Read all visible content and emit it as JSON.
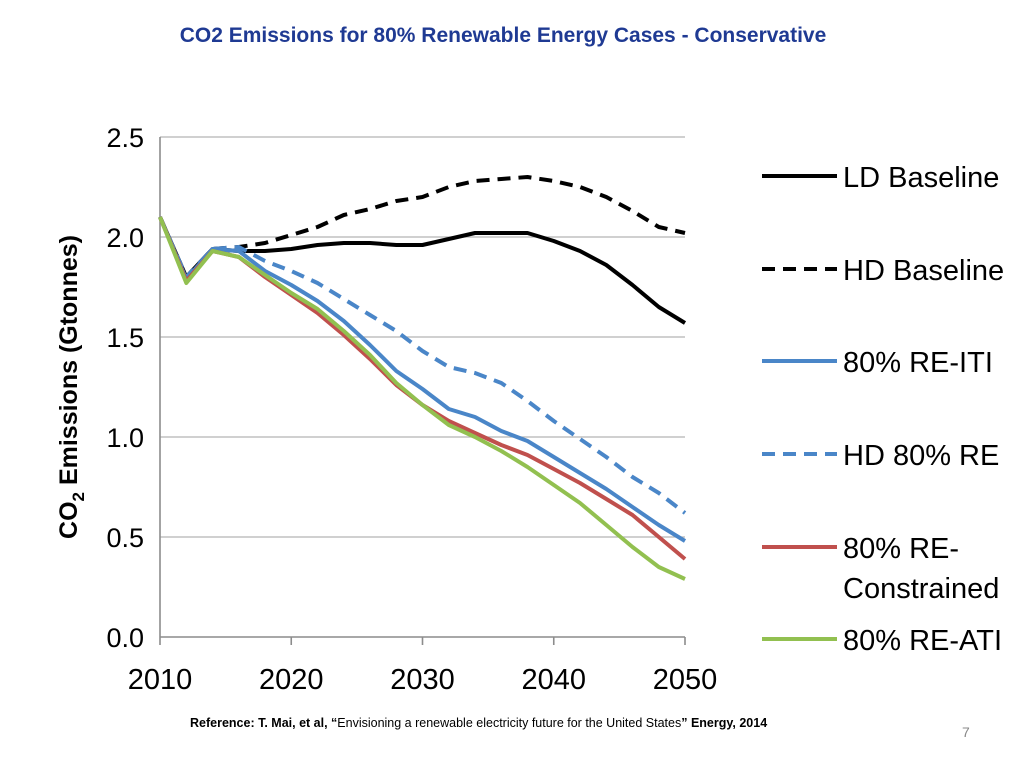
{
  "slide": {
    "title": "CO2 Emissions for 80% Renewable Energy Cases - Conservative",
    "reference": {
      "prefix": "Reference:  T. Mai, et al, “",
      "text": "Envisioning a renewable electricity future for the United States",
      "suffix": "” Energy, 2014"
    },
    "page_number": "7"
  },
  "chart_data": {
    "type": "line",
    "title": "",
    "xlabel": "",
    "ylabel_main": "CO",
    "ylabel_sub": "2",
    "ylabel_rest": " Emissions (Gtonnes)",
    "xlim": [
      2010,
      2050
    ],
    "ylim": [
      0,
      2.5
    ],
    "x_ticks": [
      "2010",
      "2020",
      "2030",
      "2040",
      "2050"
    ],
    "y_ticks": [
      "0.0",
      "0.5",
      "1.0",
      "1.5",
      "2.0",
      "2.5"
    ],
    "grid": "horizontal",
    "legend_position": "right",
    "series": [
      {
        "name": "LD Baseline",
        "color": "#000000",
        "dash": "solid",
        "x": [
          2010,
          2012,
          2014,
          2016,
          2018,
          2020,
          2022,
          2024,
          2026,
          2028,
          2030,
          2032,
          2034,
          2036,
          2038,
          2040,
          2042,
          2044,
          2046,
          2048,
          2050
        ],
        "values": [
          2.1,
          1.8,
          1.94,
          1.93,
          1.93,
          1.94,
          1.96,
          1.97,
          1.97,
          1.96,
          1.96,
          1.99,
          2.02,
          2.02,
          2.02,
          1.98,
          1.93,
          1.86,
          1.76,
          1.65,
          1.57
        ]
      },
      {
        "name": "HD Baseline",
        "color": "#000000",
        "dash": "dash",
        "x": [
          2010,
          2012,
          2014,
          2016,
          2018,
          2020,
          2022,
          2024,
          2026,
          2028,
          2030,
          2032,
          2034,
          2036,
          2038,
          2040,
          2042,
          2044,
          2046,
          2048,
          2050
        ],
        "values": [
          2.1,
          1.8,
          1.94,
          1.95,
          1.97,
          2.01,
          2.05,
          2.11,
          2.14,
          2.18,
          2.2,
          2.25,
          2.28,
          2.29,
          2.3,
          2.28,
          2.25,
          2.2,
          2.13,
          2.05,
          2.02
        ]
      },
      {
        "name": "80% RE-ITI",
        "color": "#4a86c8",
        "dash": "solid",
        "x": [
          2010,
          2012,
          2014,
          2016,
          2018,
          2020,
          2022,
          2024,
          2026,
          2028,
          2030,
          2032,
          2034,
          2036,
          2038,
          2040,
          2042,
          2044,
          2046,
          2048,
          2050
        ],
        "values": [
          2.1,
          1.79,
          1.94,
          1.93,
          1.83,
          1.76,
          1.68,
          1.58,
          1.46,
          1.33,
          1.24,
          1.14,
          1.1,
          1.03,
          0.98,
          0.9,
          0.82,
          0.74,
          0.65,
          0.56,
          0.48
        ]
      },
      {
        "name": "HD 80% RE",
        "color": "#4a86c8",
        "dash": "dash",
        "x": [
          2010,
          2012,
          2014,
          2016,
          2018,
          2020,
          2022,
          2024,
          2026,
          2028,
          2030,
          2032,
          2034,
          2036,
          2038,
          2040,
          2042,
          2044,
          2046,
          2048,
          2050
        ],
        "values": [
          2.1,
          1.8,
          1.94,
          1.95,
          1.88,
          1.83,
          1.77,
          1.69,
          1.61,
          1.53,
          1.43,
          1.35,
          1.32,
          1.27,
          1.18,
          1.08,
          0.99,
          0.9,
          0.8,
          0.72,
          0.62
        ]
      },
      {
        "name": "80% RE-Constrained",
        "color": "#c0504d",
        "dash": "solid",
        "x": [
          2010,
          2012,
          2014,
          2016,
          2018,
          2020,
          2022,
          2024,
          2026,
          2028,
          2030,
          2032,
          2034,
          2036,
          2038,
          2040,
          2042,
          2044,
          2046,
          2048,
          2050
        ],
        "values": [
          2.1,
          1.78,
          1.93,
          1.9,
          1.8,
          1.71,
          1.62,
          1.51,
          1.39,
          1.26,
          1.16,
          1.08,
          1.02,
          0.96,
          0.91,
          0.84,
          0.77,
          0.69,
          0.61,
          0.5,
          0.39
        ]
      },
      {
        "name": "80% RE-ATI",
        "color": "#92c050",
        "dash": "solid",
        "x": [
          2010,
          2012,
          2014,
          2016,
          2018,
          2020,
          2022,
          2024,
          2026,
          2028,
          2030,
          2032,
          2034,
          2036,
          2038,
          2040,
          2042,
          2044,
          2046,
          2048,
          2050
        ],
        "values": [
          2.1,
          1.77,
          1.93,
          1.9,
          1.81,
          1.72,
          1.64,
          1.53,
          1.41,
          1.27,
          1.16,
          1.06,
          1.0,
          0.93,
          0.85,
          0.76,
          0.67,
          0.56,
          0.45,
          0.35,
          0.29
        ]
      }
    ],
    "legend": [
      {
        "series": 0,
        "lines": [
          "LD Baseline"
        ]
      },
      {
        "series": 1,
        "lines": [
          "HD Baseline"
        ]
      },
      {
        "series": 2,
        "lines": [
          "80% RE-ITI"
        ]
      },
      {
        "series": 3,
        "lines": [
          "HD 80% RE"
        ]
      },
      {
        "series": 4,
        "lines": [
          "80% RE-",
          "Constrained"
        ]
      },
      {
        "series": 5,
        "lines": [
          "80% RE-ATI"
        ]
      }
    ]
  }
}
